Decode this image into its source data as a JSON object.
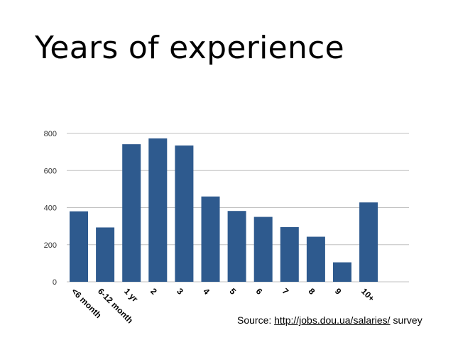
{
  "title": "Years of experience",
  "source": {
    "prefix": "Source: ",
    "link": "http://jobs.dou.ua/salaries/",
    "suffix": " survey"
  },
  "chart_data": {
    "type": "bar",
    "categories": [
      "<6 month",
      "6-12 month",
      "1 yr",
      "2",
      "3",
      "4",
      "5",
      "6",
      "7",
      "8",
      "9",
      "10+"
    ],
    "values": [
      380,
      293,
      742,
      773,
      735,
      460,
      382,
      350,
      295,
      243,
      105,
      428
    ],
    "ylim": [
      0,
      800
    ],
    "yticks": [
      0,
      200,
      400,
      600,
      800
    ],
    "grid": true,
    "bar_color": "#2e5a8e",
    "grid_color": "#c0c0c0",
    "legend": "none"
  }
}
